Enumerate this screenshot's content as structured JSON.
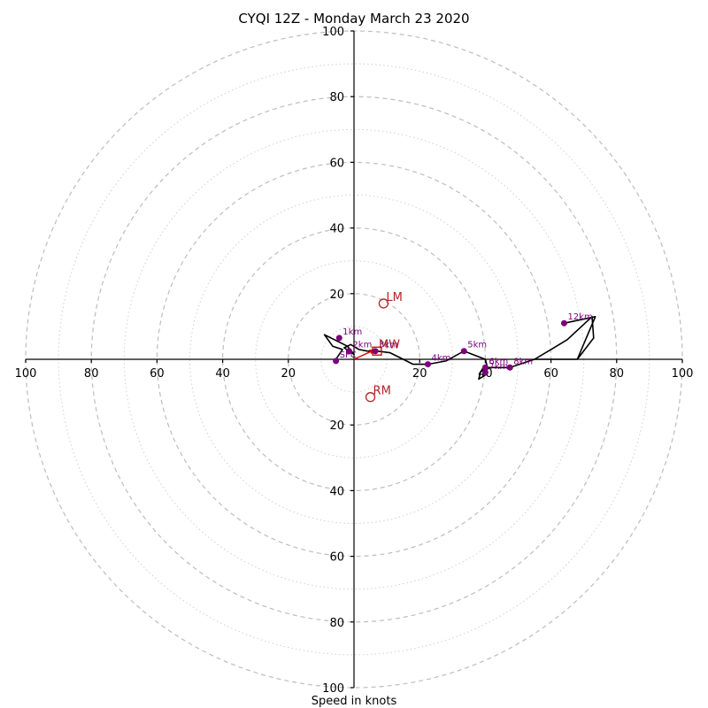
{
  "chart_data": {
    "type": "scatter",
    "title": "CYQI 12Z - Monday March 23 2020",
    "xlabel": "Speed in knots",
    "ylabel": "",
    "xlim": [
      -100,
      100
    ],
    "ylim": [
      -100,
      100
    ],
    "grid": true,
    "ring_major": [
      20,
      40,
      60,
      80,
      100
    ],
    "ring_minor": [
      10,
      30,
      50,
      70,
      90
    ],
    "x_ticks": [
      {
        "value": -100,
        "label": "100"
      },
      {
        "value": -80,
        "label": "80"
      },
      {
        "value": -60,
        "label": "60"
      },
      {
        "value": -40,
        "label": "40"
      },
      {
        "value": -20,
        "label": "20"
      },
      {
        "value": 20,
        "label": "20"
      },
      {
        "value": 40,
        "label": "40"
      },
      {
        "value": 60,
        "label": "60"
      },
      {
        "value": 80,
        "label": "80"
      },
      {
        "value": 100,
        "label": "100"
      }
    ],
    "y_ticks": [
      {
        "value": 100,
        "label": "100"
      },
      {
        "value": 80,
        "label": "80"
      },
      {
        "value": 60,
        "label": "60"
      },
      {
        "value": 40,
        "label": "40"
      },
      {
        "value": 20,
        "label": "20"
      },
      {
        "value": -20,
        "label": "20"
      },
      {
        "value": -40,
        "label": "40"
      },
      {
        "value": -60,
        "label": "60"
      },
      {
        "value": -80,
        "label": "80"
      },
      {
        "value": -100,
        "label": "100"
      }
    ],
    "hodograph": [
      [
        -5.5,
        0
      ],
      [
        -3.5,
        3
      ],
      [
        -6.5,
        4
      ],
      [
        -9,
        7.5
      ],
      [
        -2,
        4
      ],
      [
        0,
        1.5
      ],
      [
        -3,
        3.5
      ],
      [
        -1,
        4.5
      ],
      [
        1.5,
        3
      ],
      [
        4,
        2.5
      ],
      [
        7,
        2.5
      ],
      [
        11,
        2
      ],
      [
        14,
        0.5
      ],
      [
        18,
        -1.5
      ],
      [
        22.5,
        -1.5
      ],
      [
        28,
        -0.5
      ],
      [
        33.5,
        2.5
      ],
      [
        40,
        0
      ],
      [
        40.5,
        -2
      ],
      [
        38.5,
        -4
      ],
      [
        38,
        -6
      ],
      [
        40.5,
        -4.5
      ],
      [
        40,
        -2.5
      ],
      [
        47.5,
        -2.5
      ],
      [
        55,
        0
      ],
      [
        68,
        0
      ],
      [
        73.5,
        13
      ],
      [
        64,
        11
      ]
    ],
    "hodograph_extra": [
      [
        55,
        0
      ],
      [
        60,
        3
      ],
      [
        65,
        6
      ],
      [
        72.5,
        13
      ],
      [
        73,
        6.5
      ],
      [
        68,
        0
      ]
    ],
    "height_points": [
      {
        "label": "SFC",
        "u": -5.5,
        "v": -0.5
      },
      {
        "label": "1km",
        "u": -4.5,
        "v": 6.5
      },
      {
        "label": "2km",
        "u": -1.5,
        "v": 2.5
      },
      {
        "label": "3km",
        "u": 6.5,
        "v": 2.5
      },
      {
        "label": "4km",
        "u": 22.5,
        "v": -1.5
      },
      {
        "label": "5km",
        "u": 33.5,
        "v": 2.5
      },
      {
        "label": "6km",
        "u": 40,
        "v": -2.5
      },
      {
        "label": "7km",
        "u": 40,
        "v": -4
      },
      {
        "label": "8km",
        "u": 47.5,
        "v": -2.5
      },
      {
        "label": "12km",
        "u": 64,
        "v": 11
      }
    ],
    "storm_motion": [
      {
        "label": "LM",
        "u": 9,
        "v": 17
      },
      {
        "label": "RM",
        "u": 5,
        "v": -11.5
      }
    ],
    "mean_wind": {
      "label": "MW",
      "u": 7,
      "v": 2.5
    },
    "shear_vector": {
      "from": [
        0,
        0
      ],
      "to": [
        6.5,
        3
      ]
    }
  }
}
